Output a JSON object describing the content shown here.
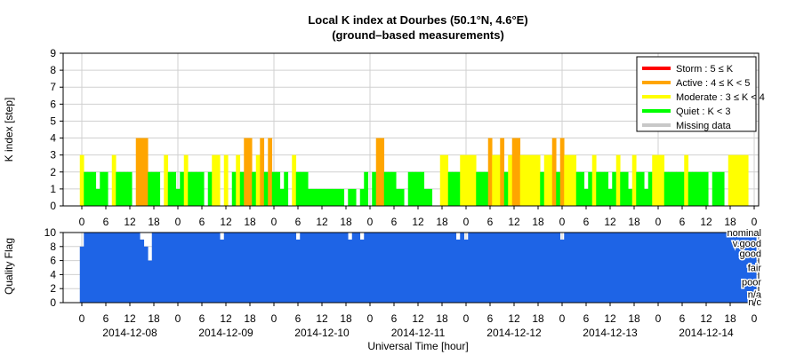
{
  "chart_data": [
    {
      "type": "bar",
      "title": "Local K index at Dourbes (50.1°N, 4.6°E)",
      "subtitle": "(ground–based measurements)",
      "ylabel": "K index [step]",
      "ylim": [
        0,
        9
      ],
      "yticks": [
        "0",
        "1",
        "2",
        "3",
        "4",
        "5",
        "6",
        "7",
        "8",
        "9"
      ],
      "xticks": [
        "0",
        "6",
        "12",
        "18",
        "0",
        "6",
        "12",
        "18",
        "0",
        "6",
        "12",
        "18",
        "0",
        "6",
        "12",
        "18",
        "0",
        "6",
        "12",
        "18",
        "0",
        "6",
        "12",
        "18",
        "0",
        "6",
        "12",
        "18",
        "0"
      ],
      "grid": true,
      "legend_position": "top-right",
      "legend": [
        {
          "label": "Storm : 5 ≤ K",
          "color": "#ff0000"
        },
        {
          "label": "Active : 4 ≤ K < 5",
          "color": "#ffa500"
        },
        {
          "label": "Moderate : 3 ≤ K < 4",
          "color": "#ffff00"
        },
        {
          "label": "Quiet : K < 3",
          "color": "#00ff00"
        },
        {
          "label": "Missing data",
          "color": "#c8c8c8"
        }
      ],
      "colors": {
        "quiet": "#00ff00",
        "moderate": "#ffff00",
        "active": "#ffa500",
        "storm": "#ff0000"
      },
      "x_unit": "hour (UT)",
      "x_start": "2014-12-08 00:00",
      "interval_hours": 1,
      "values": [
        3,
        2,
        2,
        2,
        1,
        2,
        2,
        0,
        3,
        2,
        2,
        2,
        2,
        0,
        4,
        4,
        4,
        2,
        2,
        2,
        0,
        3,
        2,
        2,
        1,
        2,
        3,
        2,
        2,
        2,
        2,
        0,
        2,
        3,
        3,
        0,
        3,
        0,
        2,
        3,
        2,
        4,
        4,
        2,
        3,
        4,
        2,
        4,
        2,
        2,
        1,
        2,
        0,
        3,
        2,
        2,
        2,
        1,
        1,
        1,
        1,
        1,
        1,
        1,
        1,
        1,
        0,
        1,
        1,
        0,
        1,
        2,
        0,
        2,
        4,
        4,
        2,
        2,
        2,
        1,
        1,
        0,
        2,
        2,
        2,
        2,
        1,
        1,
        0,
        0,
        3,
        3,
        2,
        2,
        2,
        3,
        3,
        3,
        3,
        2,
        2,
        2,
        4,
        3,
        3,
        4,
        2,
        3,
        4,
        4,
        3,
        3,
        3,
        3,
        3,
        2,
        3,
        3,
        4,
        2,
        4,
        3,
        3,
        3,
        2,
        2,
        1,
        2,
        3,
        2,
        2,
        2,
        1,
        2,
        3,
        2,
        2,
        1,
        3,
        2,
        2,
        1,
        2,
        3,
        3,
        3,
        2,
        2,
        2,
        2,
        2,
        3,
        2,
        2,
        2,
        2,
        2,
        0,
        2,
        2,
        2,
        0,
        3,
        3,
        3,
        3,
        3
      ]
    },
    {
      "type": "area",
      "ylabel": "Quality Flag",
      "xlabel": "Universal Time [hour]",
      "ylim": [
        0,
        10
      ],
      "yticks": [
        "0",
        "2",
        "4",
        "6",
        "8",
        "10"
      ],
      "flag_labels": [
        {
          "label": "nominal",
          "value": 10
        },
        {
          "label": "v.good",
          "value": 8.5
        },
        {
          "label": "good",
          "value": 7
        },
        {
          "label": "fair",
          "value": 5
        },
        {
          "label": "poor",
          "value": 3
        },
        {
          "label": "n/a",
          "value": 1.2
        },
        {
          "label": "n/c",
          "value": 0
        }
      ],
      "date_labels": [
        "2014-12-08",
        "2014-12-09",
        "2014-12-10",
        "2014-12-11",
        "2014-12-12",
        "2014-12-13",
        "2014-12-14"
      ],
      "fill_color": "#1e64e6",
      "values": [
        8,
        10,
        10,
        10,
        10,
        10,
        10,
        10,
        10,
        10,
        10,
        10,
        10,
        10,
        10,
        9,
        8,
        6,
        10,
        10,
        10,
        10,
        10,
        10,
        10,
        10,
        10,
        10,
        10,
        10,
        10,
        10,
        10,
        10,
        10,
        9,
        10,
        10,
        10,
        10,
        10,
        10,
        10,
        10,
        10,
        10,
        10,
        10,
        10,
        10,
        10,
        10,
        10,
        10,
        9,
        10,
        10,
        10,
        10,
        10,
        10,
        10,
        10,
        10,
        10,
        10,
        10,
        9,
        10,
        10,
        9,
        10,
        10,
        10,
        10,
        10,
        10,
        10,
        10,
        10,
        10,
        10,
        10,
        10,
        10,
        10,
        10,
        10,
        10,
        10,
        10,
        10,
        10,
        10,
        9,
        10,
        9,
        10,
        10,
        10,
        10,
        10,
        10,
        10,
        10,
        10,
        10,
        10,
        10,
        10,
        10,
        10,
        10,
        10,
        10,
        10,
        10,
        10,
        10,
        10,
        9,
        10,
        10,
        10,
        10,
        10,
        10,
        10,
        10,
        10,
        10,
        10,
        10,
        10,
        10,
        10,
        10,
        10,
        10,
        10,
        10,
        10,
        10,
        10,
        10,
        10,
        10,
        10,
        10,
        10,
        10,
        10,
        10,
        10,
        10,
        10,
        10,
        10,
        10,
        10,
        10,
        10,
        10,
        10,
        10,
        10,
        10,
        10,
        10
      ]
    }
  ]
}
